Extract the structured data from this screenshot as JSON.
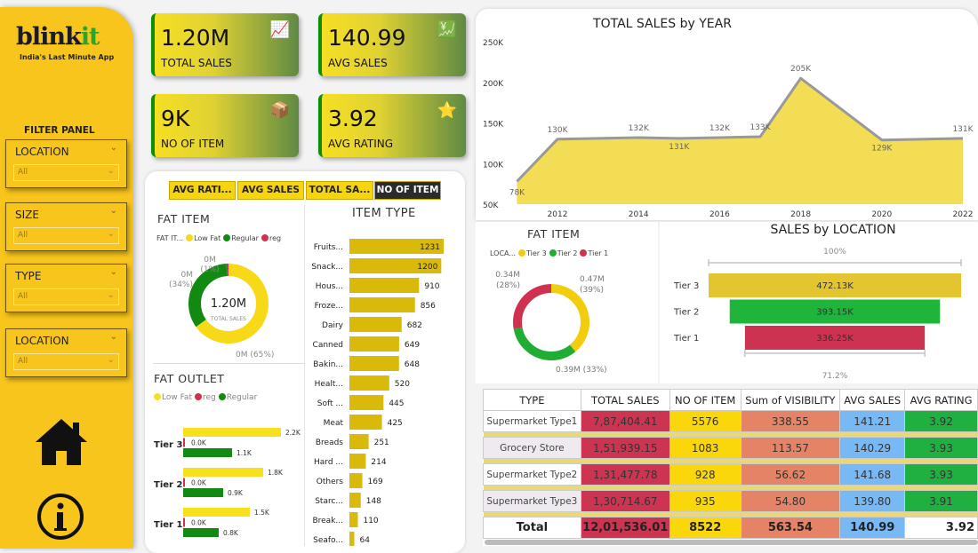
{
  "brand": {
    "name_a": "blink",
    "name_b": "it",
    "tagline": "India's Last Minute App"
  },
  "filter_panel": {
    "title": "FILTER PANEL",
    "slicers": [
      {
        "label": "LOCATION",
        "value": "All"
      },
      {
        "label": "SIZE",
        "value": "All"
      },
      {
        "label": "TYPE",
        "value": "All"
      },
      {
        "label": "LOCATION",
        "value": "All"
      }
    ]
  },
  "icons": {
    "home": "home-icon",
    "info": "info-icon"
  },
  "kpis": [
    {
      "value": "1.20M",
      "label": "TOTAL SALES",
      "icon": "sales-growth-icon"
    },
    {
      "value": "140.99",
      "label": "AVG SALES",
      "icon": "dollar-bars-icon"
    },
    {
      "value": "9K",
      "label": "NO OF ITEM",
      "icon": "boxes-icon"
    },
    {
      "value": "3.92",
      "label": "AVG RATING",
      "icon": "stars-thumb-icon"
    }
  ],
  "metric_buttons": [
    {
      "label": "AVG RATI...",
      "active": false
    },
    {
      "label": "AVG SALES",
      "active": false
    },
    {
      "label": "TOTAL SA...",
      "active": false
    },
    {
      "label": "NO OF ITEM",
      "active": true
    }
  ],
  "colors": {
    "yellow": "#f6d40e",
    "green": "#1a8a1a",
    "red": "#d0314f",
    "brand_yellow": "#f8c51c"
  },
  "chart_data": [
    {
      "id": "fat_item",
      "type": "pie",
      "title": "FAT ITEM",
      "legend_title": "FAT IT...",
      "center_value": "1.20M",
      "center_label": "TOTAL SALES",
      "slices": [
        {
          "name": "Low Fat",
          "pct": 65,
          "label": "0M (65%)",
          "color": "#f7d917"
        },
        {
          "name": "Regular",
          "pct": 34,
          "label": "0M (34%)",
          "color": "#128a12"
        },
        {
          "name": "reg",
          "pct": 1,
          "label": "0M (1%)",
          "color": "#d0314f"
        }
      ]
    },
    {
      "id": "fat_outlet",
      "type": "bar",
      "title": "FAT OUTLET",
      "categories": [
        "Tier 3",
        "Tier 2",
        "Tier 1"
      ],
      "series": [
        {
          "name": "Low Fat",
          "color": "#f7e11f",
          "values": [
            2.2,
            1.8,
            1.5
          ],
          "labels": [
            "2.2K",
            "1.8K",
            "1.5K"
          ]
        },
        {
          "name": "reg",
          "color": "#d0314f",
          "values": [
            0.0,
            0.0,
            0.0
          ],
          "labels": [
            "0.0K",
            "0.0K",
            "0.0K"
          ]
        },
        {
          "name": "Regular",
          "color": "#128a12",
          "values": [
            1.1,
            0.9,
            0.8
          ],
          "labels": [
            "1.1K",
            "0.9K",
            "0.8K"
          ]
        }
      ],
      "legend": "top"
    },
    {
      "id": "item_type",
      "type": "bar",
      "title": "ITEM TYPE",
      "categories": [
        "Fruits...",
        "Snack...",
        "Hous...",
        "Froze...",
        "Dairy",
        "Canned",
        "Bakin...",
        "Healt...",
        "Soft ...",
        "Meat",
        "Breads",
        "Hard ...",
        "Others",
        "Starc...",
        "Break...",
        "Seafo..."
      ],
      "values": [
        1231,
        1200,
        910,
        856,
        682,
        649,
        648,
        520,
        445,
        425,
        251,
        214,
        169,
        148,
        110,
        64
      ]
    },
    {
      "id": "sales_by_year",
      "type": "area",
      "title": "TOTAL SALES by YEAR",
      "x": [
        2011,
        2012,
        2014,
        2015,
        2016,
        2017,
        2018,
        2020,
        2022
      ],
      "values": [
        78,
        130,
        132,
        131,
        132,
        133,
        205,
        129,
        131
      ],
      "labels": [
        "78K",
        "130K",
        "132K",
        "131K",
        "132K",
        "133K",
        "205K",
        "129K",
        "131K"
      ],
      "ylim": [
        50,
        250
      ],
      "yticks": [
        "50K",
        "100K",
        "150K",
        "200K",
        "250K"
      ],
      "xticks": [
        "2012",
        "2014",
        "2016",
        "2018",
        "2020",
        "2022"
      ],
      "grid": false
    },
    {
      "id": "location_donut",
      "type": "pie",
      "title": "FAT ITEM",
      "legend_title": "LOCA...",
      "slices": [
        {
          "name": "Tier 3",
          "pct": 39,
          "label_a": "0.47M",
          "label_b": "(39%)",
          "color": "#f2cd0c"
        },
        {
          "name": "Tier 2",
          "pct": 33,
          "label_a": "0.39M (33%)",
          "label_b": "",
          "color": "#1fae33"
        },
        {
          "name": "Tier 1",
          "pct": 28,
          "label_a": "0.34M",
          "label_b": "(28%)",
          "color": "#d0314f"
        }
      ]
    },
    {
      "id": "sales_by_location",
      "type": "funnel",
      "title": "SALES by LOCATION",
      "categories": [
        "Tier 3",
        "Tier 2",
        "Tier 1"
      ],
      "values": [
        472.13,
        393.15,
        336.25
      ],
      "labels": [
        "472.13K",
        "393.15K",
        "336.25K"
      ],
      "colors": [
        "#e3c530",
        "#1fb43a",
        "#cc3350"
      ],
      "top_pct": "100%",
      "bottom_pct": "71.2%"
    }
  ],
  "table": {
    "headers": [
      "TYPE",
      "TOTAL SALES",
      "NO OF ITEM",
      "Sum of VISIBILITY",
      "AVG SALES",
      "AVG RATING"
    ],
    "rows": [
      [
        "Supermarket Type1",
        "7,87,404.41",
        "5576",
        "338.55",
        "141.21",
        "3.92"
      ],
      [
        "Grocery Store",
        "1,51,939.15",
        "1083",
        "113.57",
        "140.29",
        "3.93"
      ],
      [
        "Supermarket Type2",
        "1,31,477.78",
        "928",
        "56.62",
        "141.68",
        "3.93"
      ],
      [
        "Supermarket Type3",
        "1,30,714.67",
        "935",
        "54.80",
        "139.80",
        "3.91"
      ]
    ],
    "total": [
      "Total",
      "12,01,536.01",
      "8522",
      "563.54",
      "140.99",
      "3.92"
    ],
    "column_colors": [
      "#ffffff",
      "#cd3452",
      "#f9d70b",
      "#e58366",
      "#78b9f5",
      "#20b040"
    ]
  }
}
